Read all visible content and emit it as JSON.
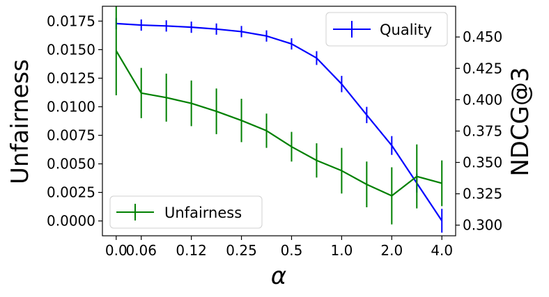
{
  "chart_data": {
    "type": "line",
    "xlabel": "α",
    "ylabel_left": "Unfairness",
    "ylabel_right": "NDCG@3",
    "x_tick_labels": [
      "0.0",
      "0.06",
      "0.12",
      "0.25",
      "0.5",
      "1.0",
      "2.0",
      "4.0"
    ],
    "x": [
      0.0,
      0.06,
      0.09,
      0.12,
      0.18,
      0.25,
      0.35,
      0.5,
      0.7,
      1.0,
      1.4,
      2.0,
      2.8,
      4.0
    ],
    "y_left_ticks": [
      "0.0000",
      "0.0025",
      "0.0050",
      "0.0075",
      "0.0100",
      "0.0125",
      "0.0150",
      "0.0175"
    ],
    "y_right_ticks": [
      "0.300",
      "0.325",
      "0.350",
      "0.375",
      "0.400",
      "0.425",
      "0.450"
    ],
    "ylim_left": [
      -0.0013,
      0.0188
    ],
    "ylim_right": [
      0.2915,
      0.4745
    ],
    "legend_quality": "Quality",
    "legend_unfairness": "Unfairness",
    "series": [
      {
        "name": "Quality",
        "axis": "right",
        "color": "#0000ff",
        "values": [
          0.4607,
          0.4595,
          0.4588,
          0.4578,
          0.4563,
          0.4543,
          0.4508,
          0.4445,
          0.4332,
          0.4125,
          0.3878,
          0.3635,
          0.3335,
          0.3035
        ],
        "errors": [
          0.0045,
          0.0045,
          0.0045,
          0.0045,
          0.0045,
          0.0045,
          0.0045,
          0.0045,
          0.0055,
          0.0065,
          0.0065,
          0.0075,
          0.0075,
          0.0095
        ]
      },
      {
        "name": "Unfairness",
        "axis": "left",
        "color": "#008000",
        "values": [
          0.0149,
          0.0112,
          0.0108,
          0.0103,
          0.0096,
          0.0088,
          0.0079,
          0.0065,
          0.0053,
          0.0044,
          0.0032,
          0.0022,
          0.0039,
          0.0033
        ],
        "errors": [
          0.0039,
          0.0022,
          0.0021,
          0.002,
          0.002,
          0.0019,
          0.0015,
          0.0013,
          0.0015,
          0.002,
          0.002,
          0.0025,
          0.0028,
          0.002
        ]
      }
    ]
  }
}
